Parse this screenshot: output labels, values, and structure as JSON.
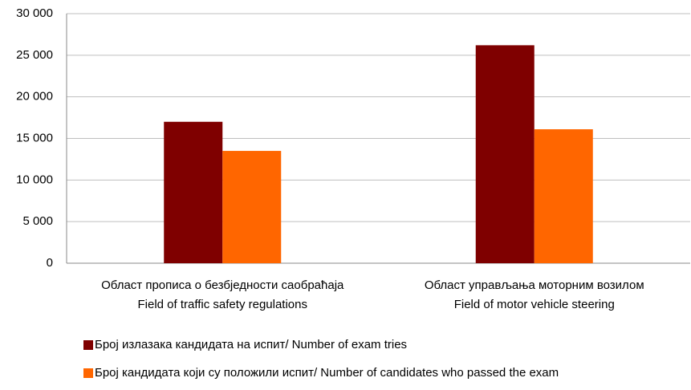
{
  "chart_data": {
    "type": "bar",
    "categories": [
      [
        "Област прописа о безбједности саобраћаја",
        "Field of traffic safety regulations"
      ],
      [
        "Област управљања моторним возилом",
        "Field of motor vehicle steering"
      ]
    ],
    "series": [
      {
        "name": "Број излазака кандидата на испит/ Number of exam tries",
        "color": "#7f0000",
        "values": [
          17000,
          26200
        ]
      },
      {
        "name": "Број кандидата који су положили испит/ Number of candidates who passed the exam",
        "color": "#ff6600",
        "values": [
          13500,
          16100
        ]
      }
    ],
    "ylim": [
      0,
      30000
    ],
    "yticks": [
      0,
      {
        "value": 5000,
        "label": "5 000"
      },
      {
        "value": 10000,
        "label": "10 000"
      },
      {
        "value": 15000,
        "label": "15 000"
      },
      {
        "value": 20000,
        "label": "20 000"
      },
      {
        "value": 25000,
        "label": "25 000"
      },
      {
        "value": 30000,
        "label": "30 000"
      }
    ],
    "grid": true
  }
}
